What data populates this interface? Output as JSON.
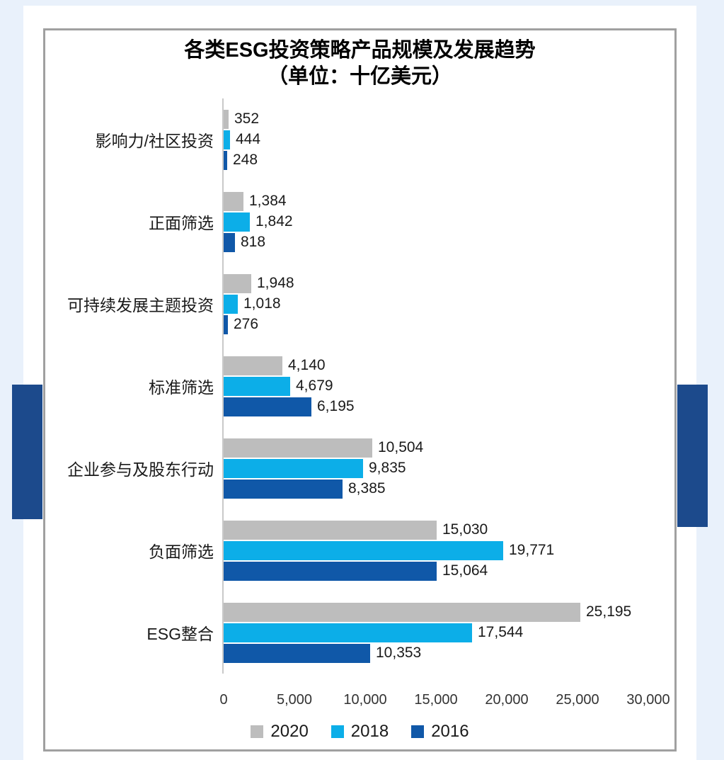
{
  "page": {
    "background_color": "#e9f1fb",
    "panel_color": "#ffffff",
    "card_border_color": "#a0a0a0",
    "accent_color": "#1c4a8c"
  },
  "title": {
    "line1": "各类ESG投资策略产品规模及发展趋势",
    "line2": "（单位：十亿美元）"
  },
  "chart_data": {
    "type": "bar",
    "orientation": "horizontal",
    "title": "各类ESG投资策略产品规模及发展趋势",
    "subtitle": "（单位：十亿美元）",
    "unit": "十亿美元",
    "grid": false,
    "categories": [
      "影响力/社区投资",
      "正面筛选",
      "可持续发展主题投资",
      "标准筛选",
      "企业参与及股东行动",
      "负面筛选",
      "ESG整合"
    ],
    "series": [
      {
        "name": "2020",
        "color": "#bdbdbd",
        "values": [
          352,
          1384,
          1948,
          4140,
          10504,
          15030,
          25195
        ]
      },
      {
        "name": "2018",
        "color": "#0caee8",
        "values": [
          444,
          1842,
          1018,
          4679,
          9835,
          19771,
          17544
        ]
      },
      {
        "name": "2016",
        "color": "#1058a8",
        "values": [
          248,
          818,
          276,
          6195,
          8385,
          15064,
          10353
        ]
      }
    ],
    "xlim": [
      0,
      30000
    ],
    "x_ticks": [
      "0",
      "5,000",
      "10,000",
      "15,000",
      "20,000",
      "25,000",
      "30,000"
    ],
    "legend_position": "bottom",
    "legend": [
      {
        "label": "2020",
        "color": "#bdbdbd"
      },
      {
        "label": "2018",
        "color": "#0caee8"
      },
      {
        "label": "2016",
        "color": "#1058a8"
      }
    ]
  }
}
